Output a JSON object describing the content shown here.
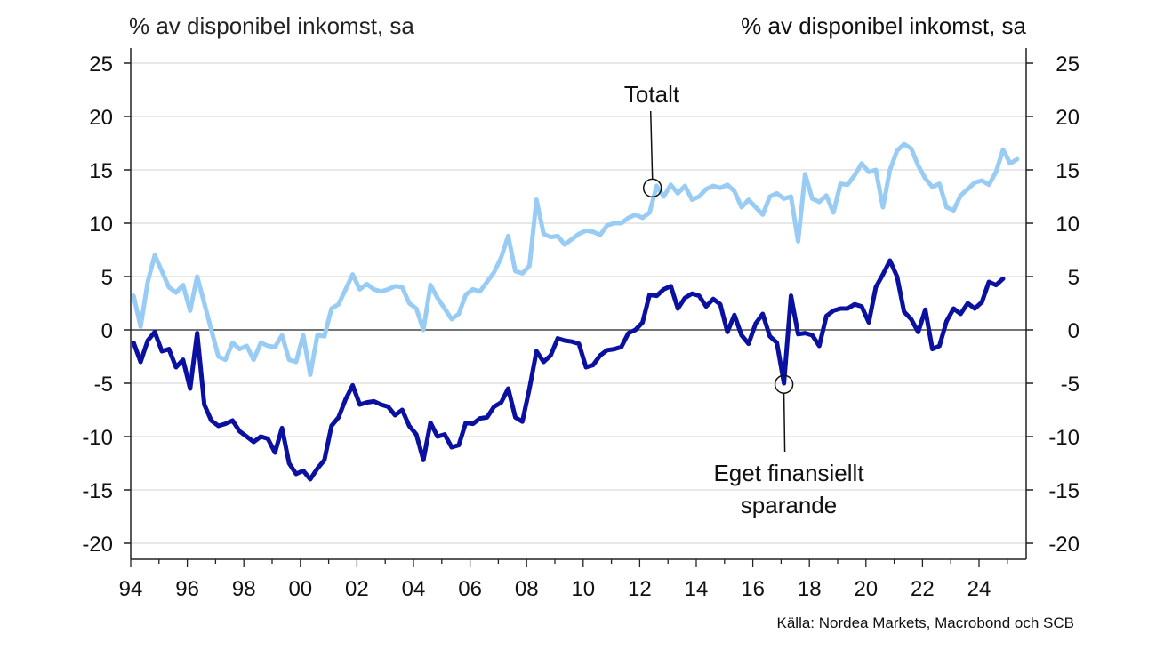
{
  "chart_data": {
    "type": "line",
    "ylabel_left": "% av disponibel inkomst, sa",
    "ylabel_right": "% av disponibel inkomst, sa",
    "ylim": [
      -22,
      27
    ],
    "xlim": [
      1994,
      2025.7
    ],
    "y_ticks": [
      25,
      20,
      15,
      10,
      5,
      0,
      -5,
      -10,
      -15,
      -20
    ],
    "y_tick_labels": [
      "25",
      "20",
      "15",
      "10",
      "5",
      "0",
      "-5",
      "-10",
      "-15",
      "-20"
    ],
    "x_ticks": [
      1994,
      1996,
      1998,
      2000,
      2002,
      2004,
      2006,
      2008,
      2010,
      2012,
      2014,
      2016,
      2018,
      2020,
      2022,
      2024
    ],
    "x_tick_labels": [
      "94",
      "96",
      "98",
      "00",
      "02",
      "04",
      "06",
      "08",
      "10",
      "12",
      "14",
      "16",
      "18",
      "20",
      "22",
      "24"
    ],
    "grid": true,
    "series": [
      {
        "name": "Totalt",
        "color": "#99ccf5",
        "points": [
          [
            1994.1,
            3.2
          ],
          [
            1994.35,
            0.3
          ],
          [
            1994.6,
            4.5
          ],
          [
            1994.85,
            7
          ],
          [
            1995.1,
            5.5
          ],
          [
            1995.35,
            4
          ],
          [
            1995.6,
            3.5
          ],
          [
            1995.85,
            4.2
          ],
          [
            1996.1,
            1.8
          ],
          [
            1996.35,
            5
          ],
          [
            1996.6,
            2.5
          ],
          [
            1996.85,
            0
          ],
          [
            1997.1,
            -2.5
          ],
          [
            1997.35,
            -2.8
          ],
          [
            1997.6,
            -1.2
          ],
          [
            1997.85,
            -1.8
          ],
          [
            1998.1,
            -1.5
          ],
          [
            1998.35,
            -2.8
          ],
          [
            1998.6,
            -1.2
          ],
          [
            1998.85,
            -1.5
          ],
          [
            1999.1,
            -1.6
          ],
          [
            1999.35,
            -0.5
          ],
          [
            1999.6,
            -2.8
          ],
          [
            1999.85,
            -3
          ],
          [
            2000.1,
            -0.5
          ],
          [
            2000.35,
            -4.2
          ],
          [
            2000.6,
            -0.5
          ],
          [
            2000.85,
            -0.6
          ],
          [
            2001.1,
            2
          ],
          [
            2001.35,
            2.4
          ],
          [
            2001.6,
            3.8
          ],
          [
            2001.85,
            5.2
          ],
          [
            2002.1,
            3.8
          ],
          [
            2002.35,
            4.3
          ],
          [
            2002.6,
            3.8
          ],
          [
            2002.85,
            3.6
          ],
          [
            2003.1,
            3.8
          ],
          [
            2003.35,
            4.1
          ],
          [
            2003.6,
            4
          ],
          [
            2003.85,
            2.5
          ],
          [
            2004.1,
            2
          ],
          [
            2004.35,
            0
          ],
          [
            2004.6,
            4.2
          ],
          [
            2004.85,
            3
          ],
          [
            2005.1,
            2
          ],
          [
            2005.35,
            1
          ],
          [
            2005.6,
            1.5
          ],
          [
            2005.85,
            3.3
          ],
          [
            2006.1,
            3.8
          ],
          [
            2006.35,
            3.6
          ],
          [
            2006.6,
            4.5
          ],
          [
            2006.85,
            5.4
          ],
          [
            2007.1,
            6.8
          ],
          [
            2007.35,
            8.8
          ],
          [
            2007.6,
            5.5
          ],
          [
            2007.85,
            5.3
          ],
          [
            2008.1,
            6
          ],
          [
            2008.35,
            12.2
          ],
          [
            2008.6,
            9
          ],
          [
            2008.85,
            8.7
          ],
          [
            2009.1,
            8.8
          ],
          [
            2009.35,
            8
          ],
          [
            2009.6,
            8.5
          ],
          [
            2009.85,
            9
          ],
          [
            2010.1,
            9.3
          ],
          [
            2010.35,
            9.2
          ],
          [
            2010.6,
            8.9
          ],
          [
            2010.85,
            9.8
          ],
          [
            2011.1,
            10
          ],
          [
            2011.35,
            10
          ],
          [
            2011.6,
            10.5
          ],
          [
            2011.85,
            10.8
          ],
          [
            2012.1,
            10.5
          ],
          [
            2012.35,
            11
          ],
          [
            2012.6,
            13.5
          ],
          [
            2012.85,
            12.5
          ],
          [
            2013.1,
            13.6
          ],
          [
            2013.35,
            12.8
          ],
          [
            2013.6,
            13.5
          ],
          [
            2013.85,
            12.2
          ],
          [
            2014.1,
            12.5
          ],
          [
            2014.35,
            13.2
          ],
          [
            2014.6,
            13.5
          ],
          [
            2014.85,
            13.3
          ],
          [
            2015.1,
            13.6
          ],
          [
            2015.35,
            13
          ],
          [
            2015.6,
            11.5
          ],
          [
            2015.85,
            12.2
          ],
          [
            2016.1,
            11.5
          ],
          [
            2016.35,
            10.8
          ],
          [
            2016.6,
            12.5
          ],
          [
            2016.85,
            12.8
          ],
          [
            2017.1,
            12.3
          ],
          [
            2017.35,
            12.5
          ],
          [
            2017.6,
            8.3
          ],
          [
            2017.85,
            14.6
          ],
          [
            2018.1,
            12.3
          ],
          [
            2018.35,
            12
          ],
          [
            2018.6,
            12.6
          ],
          [
            2018.85,
            11
          ],
          [
            2019.1,
            13.7
          ],
          [
            2019.35,
            13.6
          ],
          [
            2019.6,
            14.5
          ],
          [
            2019.85,
            15.6
          ],
          [
            2020.1,
            14.8
          ],
          [
            2020.35,
            15
          ],
          [
            2020.6,
            11.5
          ],
          [
            2020.85,
            15
          ],
          [
            2021.1,
            16.8
          ],
          [
            2021.35,
            17.4
          ],
          [
            2021.6,
            17
          ],
          [
            2021.85,
            15.4
          ],
          [
            2022.1,
            14.2
          ],
          [
            2022.35,
            13.4
          ],
          [
            2022.6,
            13.7
          ],
          [
            2022.85,
            11.5
          ],
          [
            2023.1,
            11.2
          ],
          [
            2023.35,
            12.6
          ],
          [
            2023.6,
            13.2
          ],
          [
            2023.85,
            13.8
          ],
          [
            2024.1,
            14
          ],
          [
            2024.35,
            13.6
          ],
          [
            2024.6,
            14.8
          ],
          [
            2024.85,
            16.9
          ],
          [
            2025.1,
            15.6
          ],
          [
            2025.35,
            16
          ]
        ]
      },
      {
        "name": "Eget finansiellt sparande",
        "color": "#0a10a0",
        "points": [
          [
            1994.1,
            -1.2
          ],
          [
            1994.35,
            -3
          ],
          [
            1994.6,
            -1
          ],
          [
            1994.85,
            -0.2
          ],
          [
            1995.1,
            -2
          ],
          [
            1995.35,
            -1.8
          ],
          [
            1995.6,
            -3.5
          ],
          [
            1995.85,
            -2.8
          ],
          [
            1996.1,
            -5.5
          ],
          [
            1996.35,
            -0.3
          ],
          [
            1996.6,
            -7
          ],
          [
            1996.85,
            -8.5
          ],
          [
            1997.1,
            -9
          ],
          [
            1997.35,
            -8.8
          ],
          [
            1997.6,
            -8.5
          ],
          [
            1997.85,
            -9.5
          ],
          [
            1998.1,
            -10
          ],
          [
            1998.35,
            -10.5
          ],
          [
            1998.6,
            -10
          ],
          [
            1998.85,
            -10.2
          ],
          [
            1999.1,
            -11.5
          ],
          [
            1999.35,
            -9.2
          ],
          [
            1999.6,
            -12.5
          ],
          [
            1999.85,
            -13.5
          ],
          [
            2000.1,
            -13.2
          ],
          [
            2000.35,
            -14
          ],
          [
            2000.6,
            -13
          ],
          [
            2000.85,
            -12.2
          ],
          [
            2001.1,
            -9
          ],
          [
            2001.35,
            -8.2
          ],
          [
            2001.6,
            -6.5
          ],
          [
            2001.85,
            -5.2
          ],
          [
            2002.1,
            -7
          ],
          [
            2002.35,
            -6.8
          ],
          [
            2002.6,
            -6.7
          ],
          [
            2002.85,
            -7
          ],
          [
            2003.1,
            -7.2
          ],
          [
            2003.35,
            -8
          ],
          [
            2003.6,
            -7.5
          ],
          [
            2003.85,
            -9
          ],
          [
            2004.1,
            -9.8
          ],
          [
            2004.35,
            -12.2
          ],
          [
            2004.6,
            -8.7
          ],
          [
            2004.85,
            -10
          ],
          [
            2005.1,
            -9.8
          ],
          [
            2005.35,
            -11
          ],
          [
            2005.6,
            -10.8
          ],
          [
            2005.85,
            -8.7
          ],
          [
            2006.1,
            -8.8
          ],
          [
            2006.35,
            -8.3
          ],
          [
            2006.6,
            -8.2
          ],
          [
            2006.85,
            -7.2
          ],
          [
            2007.1,
            -6.8
          ],
          [
            2007.35,
            -5.5
          ],
          [
            2007.6,
            -8.2
          ],
          [
            2007.85,
            -8.6
          ],
          [
            2008.1,
            -5.5
          ],
          [
            2008.35,
            -2
          ],
          [
            2008.6,
            -3
          ],
          [
            2008.85,
            -2.4
          ],
          [
            2009.1,
            -0.8
          ],
          [
            2009.35,
            -1
          ],
          [
            2009.6,
            -1.1
          ],
          [
            2009.85,
            -1.3
          ],
          [
            2010.1,
            -3.5
          ],
          [
            2010.35,
            -3.3
          ],
          [
            2010.6,
            -2.4
          ],
          [
            2010.85,
            -1.9
          ],
          [
            2011.1,
            -1.8
          ],
          [
            2011.35,
            -1.6
          ],
          [
            2011.6,
            -0.3
          ],
          [
            2011.85,
            0
          ],
          [
            2012.1,
            0.7
          ],
          [
            2012.35,
            3.3
          ],
          [
            2012.6,
            3.2
          ],
          [
            2012.85,
            3.8
          ],
          [
            2013.1,
            4.1
          ],
          [
            2013.35,
            2
          ],
          [
            2013.6,
            3
          ],
          [
            2013.85,
            3.4
          ],
          [
            2014.1,
            3.2
          ],
          [
            2014.35,
            2.2
          ],
          [
            2014.6,
            2.9
          ],
          [
            2014.85,
            2.4
          ],
          [
            2015.1,
            -0.2
          ],
          [
            2015.35,
            1.4
          ],
          [
            2015.6,
            -0.5
          ],
          [
            2015.85,
            -1.3
          ],
          [
            2016.1,
            0.6
          ],
          [
            2016.35,
            1.5
          ],
          [
            2016.6,
            -0.6
          ],
          [
            2016.85,
            -1.2
          ],
          [
            2017.1,
            -5
          ],
          [
            2017.35,
            3.2
          ],
          [
            2017.6,
            -0.4
          ],
          [
            2017.85,
            -0.3
          ],
          [
            2018.1,
            -0.5
          ],
          [
            2018.35,
            -1.5
          ],
          [
            2018.6,
            1.3
          ],
          [
            2018.85,
            1.8
          ],
          [
            2019.1,
            2
          ],
          [
            2019.35,
            2
          ],
          [
            2019.6,
            2.4
          ],
          [
            2019.85,
            2.2
          ],
          [
            2020.1,
            0.7
          ],
          [
            2020.35,
            4
          ],
          [
            2020.6,
            5.2
          ],
          [
            2020.85,
            6.5
          ],
          [
            2021.1,
            5
          ],
          [
            2021.35,
            1.7
          ],
          [
            2021.6,
            1
          ],
          [
            2021.85,
            -0.2
          ],
          [
            2022.1,
            1.9
          ],
          [
            2022.35,
            -1.8
          ],
          [
            2022.6,
            -1.5
          ],
          [
            2022.85,
            0.8
          ],
          [
            2023.1,
            2
          ],
          [
            2023.35,
            1.5
          ],
          [
            2023.6,
            2.5
          ],
          [
            2023.85,
            2
          ],
          [
            2024.1,
            2.6
          ],
          [
            2024.35,
            4.5
          ],
          [
            2024.6,
            4.2
          ],
          [
            2024.85,
            4.8
          ]
        ]
      }
    ],
    "annotations": [
      {
        "text": "Totalt",
        "x": 2012.45,
        "y": 13.3
      },
      {
        "text_lines": [
          "Eget finansiellt",
          "sparande"
        ],
        "x": 2017.1,
        "y": -5.1
      }
    ],
    "source": "Källa: Nordea Markets, Macrobond och SCB"
  }
}
